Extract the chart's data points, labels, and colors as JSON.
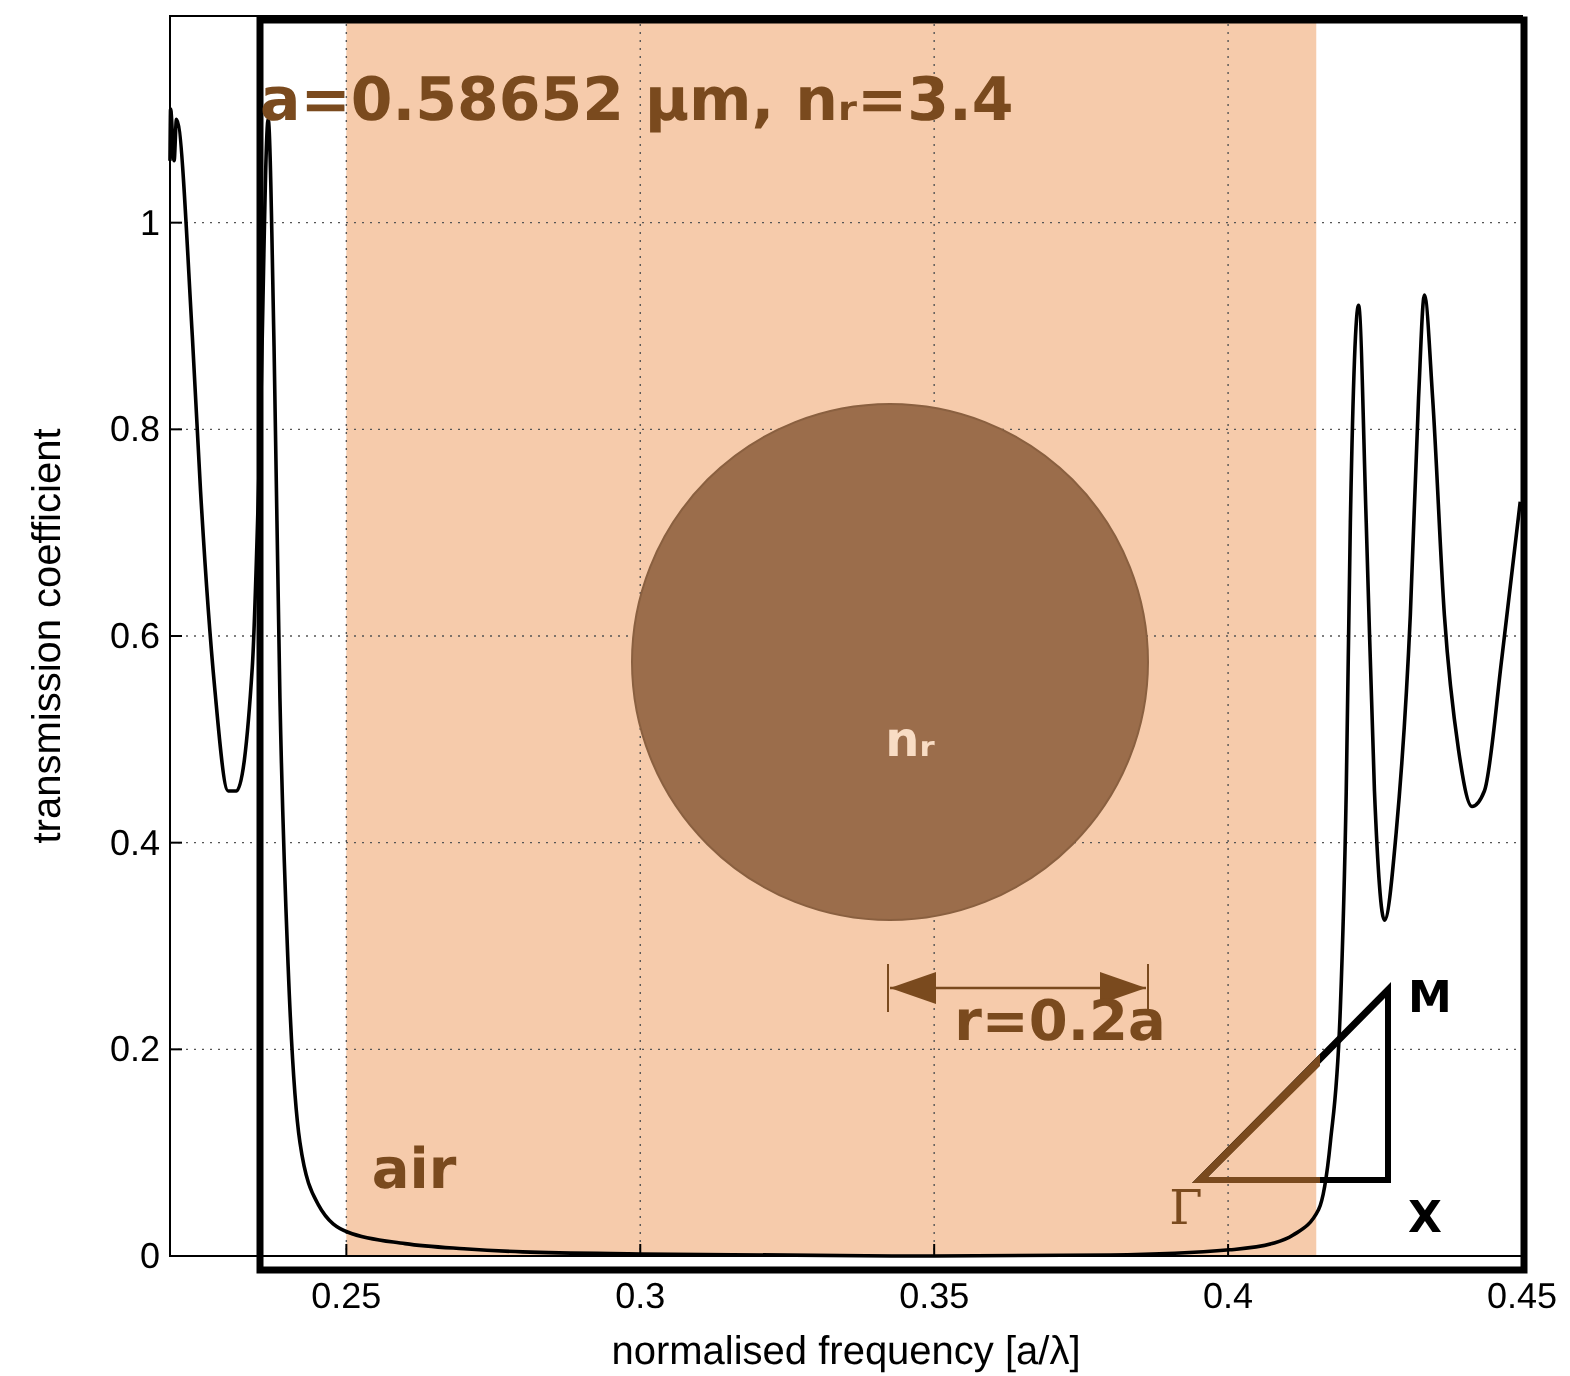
{
  "chart_data": {
    "type": "line",
    "xlabel": "normalised frequency [a/λ]",
    "ylabel": "transmission coefficient",
    "xlim": [
      0.22,
      0.45
    ],
    "ylim": [
      0,
      1.2
    ],
    "xticks": [
      0.25,
      0.3,
      0.35,
      0.4,
      0.45
    ],
    "yticks": [
      0,
      0.2,
      0.4,
      0.6,
      0.8,
      1
    ],
    "grid": true,
    "line_style": "solid",
    "bands": [
      {
        "axis": "x",
        "from": 0.25,
        "to": 0.415,
        "color": "#f6cbab"
      }
    ],
    "annotations": [
      "a=0.58652 μm, nᵣ=3.4",
      "nᵣ",
      "r=0.2a",
      "air",
      "M",
      "X",
      "Γ"
    ],
    "series": [
      {
        "color": "#000000",
        "x": [
          0.22,
          0.2201,
          0.2207,
          0.2211,
          0.2238,
          0.2252,
          0.2276,
          0.2299,
          0.2313,
          0.234,
          0.2353,
          0.2367,
          0.2377,
          0.2387,
          0.2401,
          0.2421,
          0.2452,
          0.2503,
          0.26,
          0.27,
          0.28,
          0.3,
          0.35,
          0.38,
          0.4003,
          0.4075,
          0.411,
          0.4154,
          0.4174,
          0.4191,
          0.4201,
          0.4208,
          0.4222,
          0.4235,
          0.4249,
          0.4266,
          0.4286,
          0.431,
          0.4324,
          0.4334,
          0.4348,
          0.4368,
          0.4392,
          0.4415,
          0.4436,
          0.4466,
          0.4497
        ],
        "values": [
          1.06,
          1.11,
          1.06,
          1.1,
          0.89,
          0.74,
          0.55,
          0.45,
          0.45,
          0.57,
          0.79,
          1.1,
          0.88,
          0.54,
          0.28,
          0.11,
          0.05,
          0.023,
          0.012,
          0.007,
          0.004,
          0.002,
          0.0,
          0.001,
          0.006,
          0.012,
          0.02,
          0.045,
          0.11,
          0.24,
          0.45,
          0.71,
          0.92,
          0.71,
          0.45,
          0.325,
          0.41,
          0.62,
          0.83,
          0.93,
          0.83,
          0.62,
          0.49,
          0.435,
          0.45,
          0.58,
          0.73
        ]
      }
    ]
  }
}
